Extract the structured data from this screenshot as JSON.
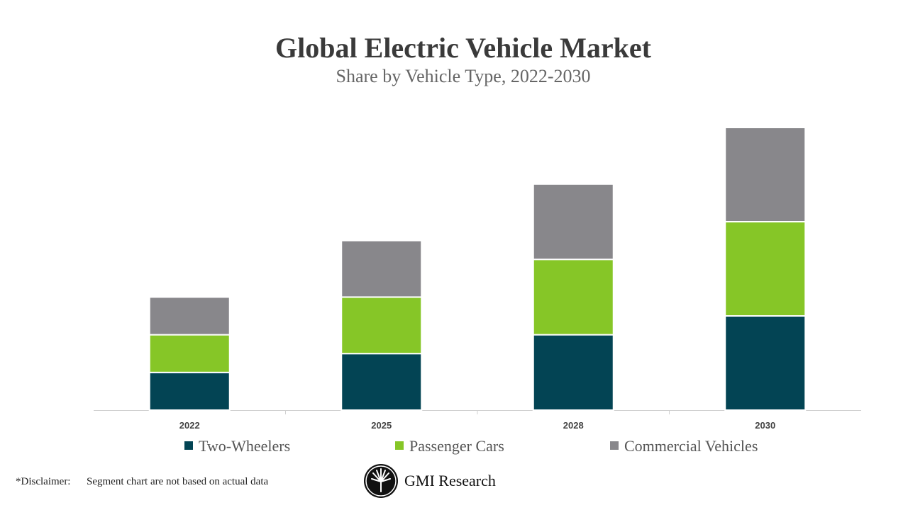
{
  "chart_data": {
    "type": "stacked-bar",
    "title": "Global Electric Vehicle Market",
    "subtitle": "Share by Vehicle Type, 2022-2030",
    "categories": [
      "2022",
      "2025",
      "2028",
      "2030"
    ],
    "series": [
      {
        "name": "Two-Wheelers",
        "color": "#034454",
        "values": [
          2,
          3,
          4,
          5
        ]
      },
      {
        "name": "Passenger Cars",
        "color": "#86c627",
        "values": [
          2,
          3,
          4,
          5
        ]
      },
      {
        "name": "Commercial Vehicles",
        "color": "#88878b",
        "values": [
          2,
          3,
          4,
          5
        ]
      }
    ]
  },
  "footer": {
    "disclaimer_label": "*Disclaimer:",
    "disclaimer_text": "Segment chart are not based on actual data",
    "brand": "GMI Research"
  }
}
